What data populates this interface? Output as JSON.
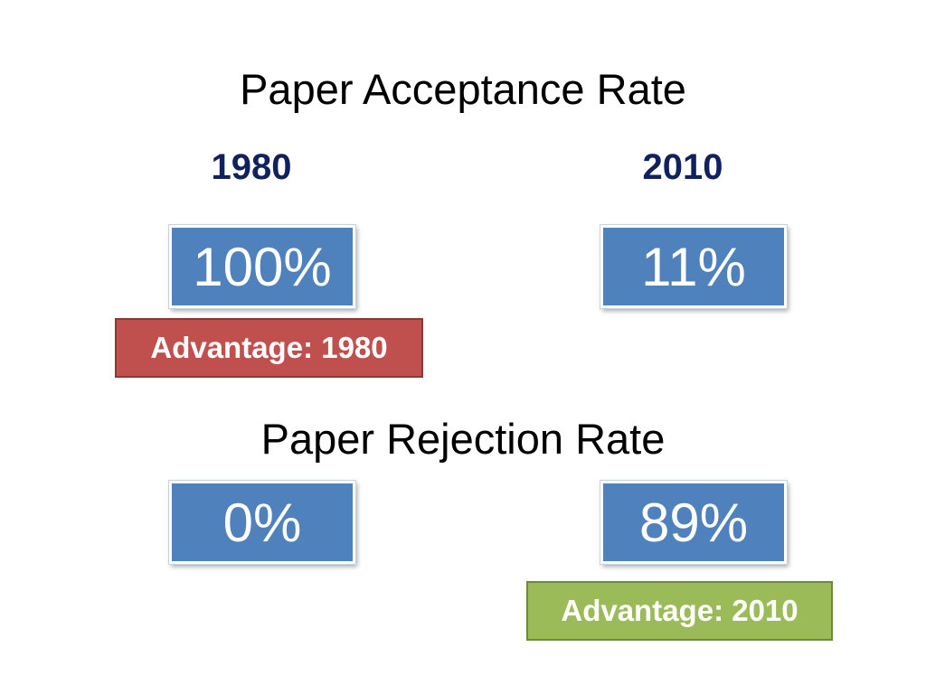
{
  "years": [
    "1980",
    "2010"
  ],
  "acceptance": {
    "title": "Paper Acceptance Rate",
    "values": [
      "100%",
      "11%"
    ],
    "advantage": "Advantage: 1980"
  },
  "rejection": {
    "title": "Paper Rejection Rate",
    "values": [
      "0%",
      "89%"
    ],
    "advantage": "Advantage: 2010"
  }
}
